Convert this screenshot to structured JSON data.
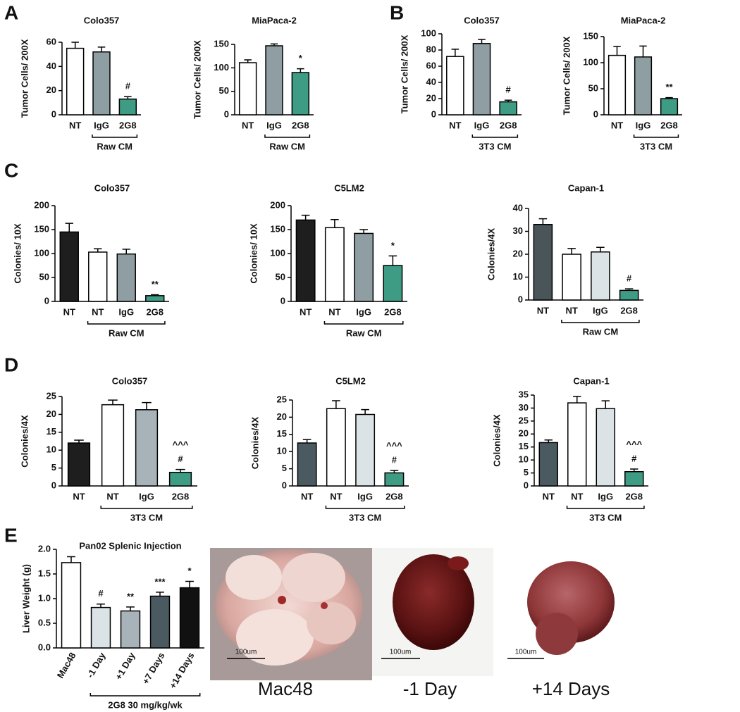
{
  "panel_labels": [
    "A",
    "B",
    "C",
    "D",
    "E"
  ],
  "chart_data": [
    {
      "type": "bar",
      "title": "Colo357",
      "ylabel": "Tumor Cells/ 200X",
      "categories": [
        "NT",
        "IgG",
        "2G8"
      ],
      "values": [
        55,
        52,
        13
      ],
      "errors": [
        5,
        4,
        2
      ],
      "colors": [
        "#ffffff",
        "#8f9ea2",
        "#3f9c84"
      ],
      "markers": [
        null,
        null,
        [
          "#"
        ]
      ],
      "group": [
        null,
        "Raw CM",
        "Raw CM"
      ],
      "ylim": [
        0,
        60
      ],
      "yticks": [
        0,
        20,
        40,
        60
      ]
    },
    {
      "type": "bar",
      "title": "MiaPaca-2",
      "ylabel": "Tumor Cells/ 200X",
      "categories": [
        "NT",
        "IgG",
        "2G8"
      ],
      "values": [
        111,
        147,
        90
      ],
      "errors": [
        6,
        4,
        8
      ],
      "colors": [
        "#ffffff",
        "#8f9ea2",
        "#3f9c84"
      ],
      "markers": [
        null,
        null,
        [
          "*"
        ]
      ],
      "group": [
        null,
        "Raw CM",
        "Raw CM"
      ],
      "ylim": [
        0,
        150
      ],
      "yticks": [
        0,
        50,
        100,
        150
      ]
    },
    {
      "type": "bar",
      "title": "Colo357",
      "ylabel": "Tumor Cells/ 200X",
      "categories": [
        "NT",
        "IgG",
        "2G8"
      ],
      "values": [
        72,
        88,
        16
      ],
      "errors": [
        9,
        5,
        2
      ],
      "colors": [
        "#ffffff",
        "#8f9ea2",
        "#3f9c84"
      ],
      "markers": [
        null,
        null,
        [
          "#"
        ]
      ],
      "group": [
        null,
        "3T3 CM",
        "3T3 CM"
      ],
      "ylim": [
        0,
        100
      ],
      "yticks": [
        0,
        20,
        40,
        60,
        80,
        100
      ]
    },
    {
      "type": "bar",
      "title": "MiaPaca-2",
      "ylabel": "Tumor  Cells/ 200X",
      "categories": [
        "NT",
        "IgG",
        "2G8"
      ],
      "values": [
        114,
        111,
        31
      ],
      "errors": [
        17,
        21,
        2
      ],
      "colors": [
        "#ffffff",
        "#8f9ea2",
        "#3f9c84"
      ],
      "markers": [
        null,
        null,
        [
          "**"
        ]
      ],
      "group": [
        null,
        "3T3 CM",
        "3T3 CM"
      ],
      "ylim": [
        0,
        150
      ],
      "yticks": [
        0,
        50,
        100,
        150
      ]
    },
    {
      "type": "bar",
      "title": "Colo357",
      "ylabel": "Colonies/ 10X",
      "categories": [
        "NT",
        "NT",
        "IgG",
        "2G8"
      ],
      "values": [
        145,
        103,
        99,
        12
      ],
      "errors": [
        18,
        7,
        10,
        2
      ],
      "colors": [
        "#1e1e1e",
        "#ffffff",
        "#8f9ea2",
        "#3f9c84"
      ],
      "markers": [
        null,
        null,
        null,
        [
          "**"
        ]
      ],
      "group": [
        null,
        "Raw CM",
        "Raw CM",
        "Raw CM"
      ],
      "ylim": [
        0,
        200
      ],
      "yticks": [
        0,
        50,
        100,
        150,
        200
      ]
    },
    {
      "type": "bar",
      "title": "C5LM2",
      "ylabel": "Colonies/ 10X",
      "categories": [
        "NT",
        "NT",
        "IgG",
        "2G8"
      ],
      "values": [
        170,
        154,
        142,
        75
      ],
      "errors": [
        10,
        17,
        8,
        20
      ],
      "colors": [
        "#1e1e1e",
        "#ffffff",
        "#8f9ea2",
        "#3f9c84"
      ],
      "markers": [
        null,
        null,
        null,
        [
          "*"
        ]
      ],
      "group": [
        null,
        "Raw CM",
        "Raw CM",
        "Raw CM"
      ],
      "ylim": [
        0,
        200
      ],
      "yticks": [
        0,
        50,
        100,
        150,
        200
      ]
    },
    {
      "type": "bar",
      "title": "Capan-1",
      "ylabel": "Colonies/4X",
      "categories": [
        "NT",
        "NT",
        "IgG",
        "2G8"
      ],
      "values": [
        33,
        20,
        21,
        4.2
      ],
      "errors": [
        2.5,
        2.5,
        2,
        0.7
      ],
      "colors": [
        "#4a555a",
        "#ffffff",
        "#dbe3e6",
        "#3f9c84"
      ],
      "markers": [
        null,
        null,
        null,
        [
          "#"
        ]
      ],
      "group": [
        null,
        "Raw CM",
        "Raw CM",
        "Raw CM"
      ],
      "ylim": [
        0,
        40
      ],
      "yticks": [
        0,
        10,
        20,
        30,
        40
      ]
    },
    {
      "type": "bar",
      "title": "Colo357",
      "ylabel": "Colonies/4X",
      "categories": [
        "NT",
        "NT",
        "IgG",
        "2G8"
      ],
      "values": [
        12,
        22.7,
        21.3,
        3.8
      ],
      "errors": [
        0.8,
        1.3,
        2,
        0.8
      ],
      "colors": [
        "#1e1e1e",
        "#ffffff",
        "#a7b3b8",
        "#3f9c84"
      ],
      "markers": [
        null,
        null,
        null,
        [
          "^^^",
          "#"
        ]
      ],
      "group": [
        null,
        "3T3 CM",
        "3T3 CM",
        "3T3 CM"
      ],
      "ylim": [
        0,
        25
      ],
      "yticks": [
        0,
        5,
        10,
        15,
        20,
        25
      ]
    },
    {
      "type": "bar",
      "title": "C5LM2",
      "ylabel": "Colonies/4X",
      "categories": [
        "NT",
        "NT",
        "IgG",
        "2G8"
      ],
      "values": [
        12.5,
        22.5,
        20.8,
        3.8
      ],
      "errors": [
        1,
        2.3,
        1.4,
        0.7
      ],
      "colors": [
        "#4a5a60",
        "#ffffff",
        "#dbe3e6",
        "#3f9c84"
      ],
      "markers": [
        null,
        null,
        null,
        [
          "^^^",
          "#"
        ]
      ],
      "group": [
        null,
        "3T3 CM",
        "3T3 CM",
        "3T3 CM"
      ],
      "ylim": [
        0,
        25
      ],
      "yticks": [
        0,
        5,
        10,
        15,
        20,
        25
      ]
    },
    {
      "type": "bar",
      "title": "Capan-1",
      "ylabel": "Colonies/4X",
      "categories": [
        "NT",
        "NT",
        "IgG",
        "2G8"
      ],
      "values": [
        16.7,
        32,
        29.8,
        5.5
      ],
      "errors": [
        1,
        2.5,
        3,
        1
      ],
      "colors": [
        "#4a5a60",
        "#ffffff",
        "#dbe3e6",
        "#3f9c84"
      ],
      "markers": [
        null,
        null,
        null,
        [
          "^^^",
          "#"
        ]
      ],
      "group": [
        null,
        "3T3 CM",
        "3T3 CM",
        "3T3 CM"
      ],
      "ylim": [
        0,
        35
      ],
      "yticks": [
        0,
        5,
        10,
        15,
        20,
        25,
        30,
        35
      ]
    },
    {
      "type": "bar",
      "title": "Pan02 Splenic Injection",
      "ylabel": "Liver Weight (g)",
      "categories": [
        "Mac48",
        "-1 Day",
        "+1 Day",
        "+7 Days",
        "+14 Days"
      ],
      "values": [
        1.73,
        0.82,
        0.75,
        1.05,
        1.22
      ],
      "errors": [
        0.12,
        0.07,
        0.08,
        0.08,
        0.13
      ],
      "colors": [
        "#ffffff",
        "#dbe3e6",
        "#a7b3b8",
        "#4a5a60",
        "#111111"
      ],
      "markers": [
        null,
        [
          "#"
        ],
        [
          "**"
        ],
        [
          "***"
        ],
        [
          "*"
        ]
      ],
      "group": [
        null,
        "2G8 30 mg/kg/wk",
        "2G8 30 mg/kg/wk",
        "2G8 30 mg/kg/wk",
        "2G8 30 mg/kg/wk"
      ],
      "ylim": [
        0,
        2
      ],
      "yticks": [
        {
          "value": 0,
          "label": "0.0"
        },
        0.5,
        {
          "value": 1,
          "label": "1.0"
        },
        1.5,
        {
          "value": 2,
          "label": "2.0"
        }
      ]
    }
  ],
  "photos": [
    {
      "caption": "Mac48",
      "scale_bar": "100um"
    },
    {
      "caption": "-1 Day",
      "scale_bar": "100um"
    },
    {
      "caption": "+14 Days",
      "scale_bar": "100um"
    }
  ]
}
